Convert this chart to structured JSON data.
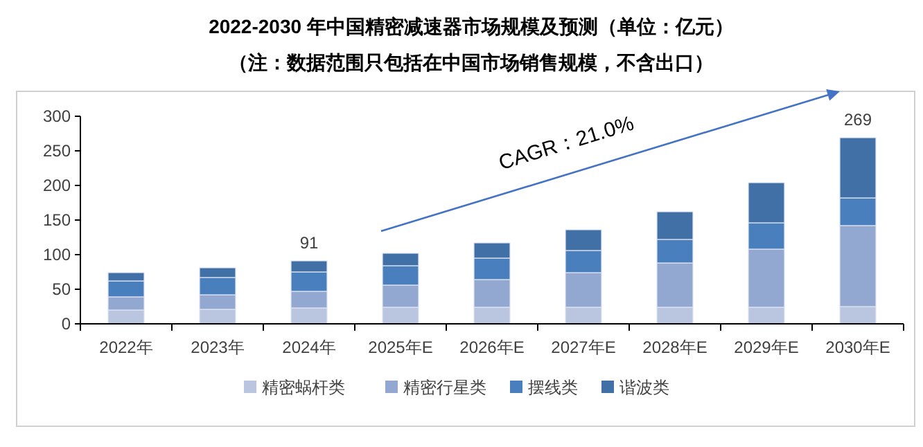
{
  "chart_data": {
    "type": "bar",
    "title": "2022-2030 年中国精密减速器市场规模及预测（单位：亿元）",
    "subtitle": "（注：数据范围只包括在中国市场销售规模，不含出口）",
    "categories": [
      "2022年",
      "2023年",
      "2024年",
      "2025年E",
      "2026年E",
      "2027年E",
      "2028年E",
      "2029年E",
      "2030年E"
    ],
    "stacked": true,
    "series": [
      {
        "name": "精密蜗杆类",
        "color": "#bac6e0",
        "values": [
          20,
          21,
          23,
          24,
          24,
          24,
          24,
          24,
          25
        ]
      },
      {
        "name": "精密行星类",
        "color": "#92a8d1",
        "values": [
          19,
          21,
          24,
          32,
          40,
          50,
          64,
          84,
          117
        ]
      },
      {
        "name": "摆线类",
        "color": "#4a7fbd",
        "values": [
          23,
          25,
          28,
          28,
          31,
          32,
          34,
          38,
          40
        ]
      },
      {
        "name": "谐波类",
        "color": "#4170a6",
        "values": [
          12,
          14,
          16,
          18,
          22,
          30,
          40,
          58,
          87
        ]
      }
    ],
    "totals": [
      null,
      null,
      "91",
      null,
      null,
      null,
      null,
      null,
      "269"
    ],
    "ylim": [
      0,
      300
    ],
    "yticks": [
      0,
      50,
      100,
      150,
      200,
      250,
      300
    ],
    "grid": false,
    "legend": "bottom",
    "annotations": [
      "CAGR：21.0%"
    ]
  }
}
